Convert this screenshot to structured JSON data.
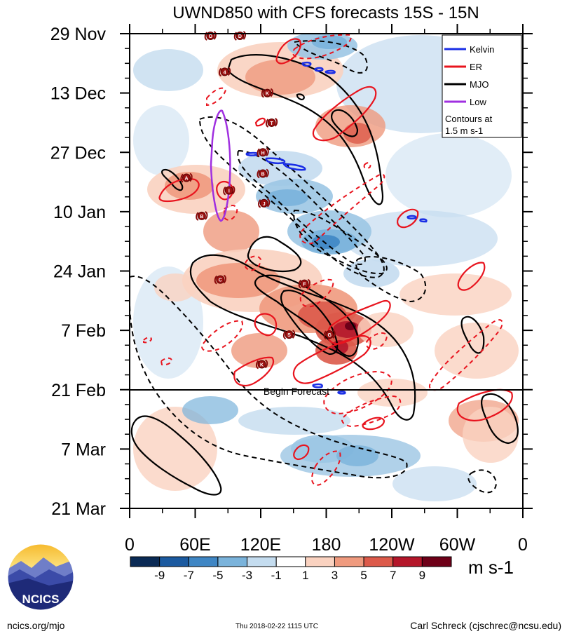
{
  "chart_data": {
    "type": "heatmap",
    "title": "UWND850 with CFS forecasts  15S - 15N",
    "x_axis": {
      "ticks": [
        "0",
        "60E",
        "120E",
        "180",
        "120W",
        "60W",
        "0"
      ],
      "range_deg_east": [
        0,
        360
      ]
    },
    "y_axis": {
      "ticks": [
        "29 Nov",
        "13 Dec",
        "27 Dec",
        "10 Jan",
        "24 Jan",
        "7 Feb",
        "21 Feb",
        "7 Mar",
        "21 Mar"
      ],
      "range_days": [
        0,
        112
      ]
    },
    "colorbar": {
      "labels": [
        "-9",
        "-7",
        "-5",
        "-3",
        "-1",
        "1",
        "3",
        "5",
        "7",
        "9"
      ],
      "colors": [
        "#0a2a55",
        "#1b5aa0",
        "#3f86c4",
        "#7ab3db",
        "#c4dcef",
        "#ffffff",
        "#fad2c0",
        "#ef9a7e",
        "#dc5a4a",
        "#b4162a",
        "#6e0018"
      ],
      "units": "m s-1"
    },
    "legend": {
      "items": [
        {
          "label": "Kelvin",
          "color": "#1a2ee6"
        },
        {
          "label": "ER",
          "color": "#e8141e"
        },
        {
          "label": "MJO",
          "color": "#000000"
        },
        {
          "label": "Low",
          "color": "#a030e0"
        }
      ],
      "note_line1": "Contours at",
      "note_line2": "1.5 m s-1"
    },
    "forecast_line_label": "Begin Forecast",
    "forecast_line_day": 84,
    "storm_labels": [
      {
        "id": "O",
        "lon": 74,
        "day": 0.5
      },
      {
        "id": "D",
        "lon": 101,
        "day": 0.5
      },
      {
        "id": "4",
        "lon": 87,
        "day": 9
      },
      {
        "id": "K",
        "lon": 126,
        "day": 14
      },
      {
        "id": "T",
        "lon": 130,
        "day": 21
      },
      {
        "id": "H",
        "lon": 122,
        "day": 28
      },
      {
        "id": "A",
        "lon": 52,
        "day": 34
      },
      {
        "id": "I",
        "lon": 91,
        "day": 37
      },
      {
        "id": "B",
        "lon": 122,
        "day": 33
      },
      {
        "id": "J",
        "lon": 123,
        "day": 40
      },
      {
        "id": "B",
        "lon": 66,
        "day": 43
      },
      {
        "id": "C",
        "lon": 83,
        "day": 58
      },
      {
        "id": "F",
        "lon": 160,
        "day": 59
      },
      {
        "id": "S",
        "lon": 146,
        "day": 71
      },
      {
        "id": "G",
        "lon": 183,
        "day": 71
      },
      {
        "id": "K",
        "lon": 121,
        "day": 78
      }
    ]
  },
  "footer": {
    "website": "ncics.org/mjo",
    "timestamp": "Thu 2018-02-22 1115 UTC",
    "author": "Carl Schreck (cjschrec@ncsu.edu)",
    "logo_text": "NCICS"
  }
}
